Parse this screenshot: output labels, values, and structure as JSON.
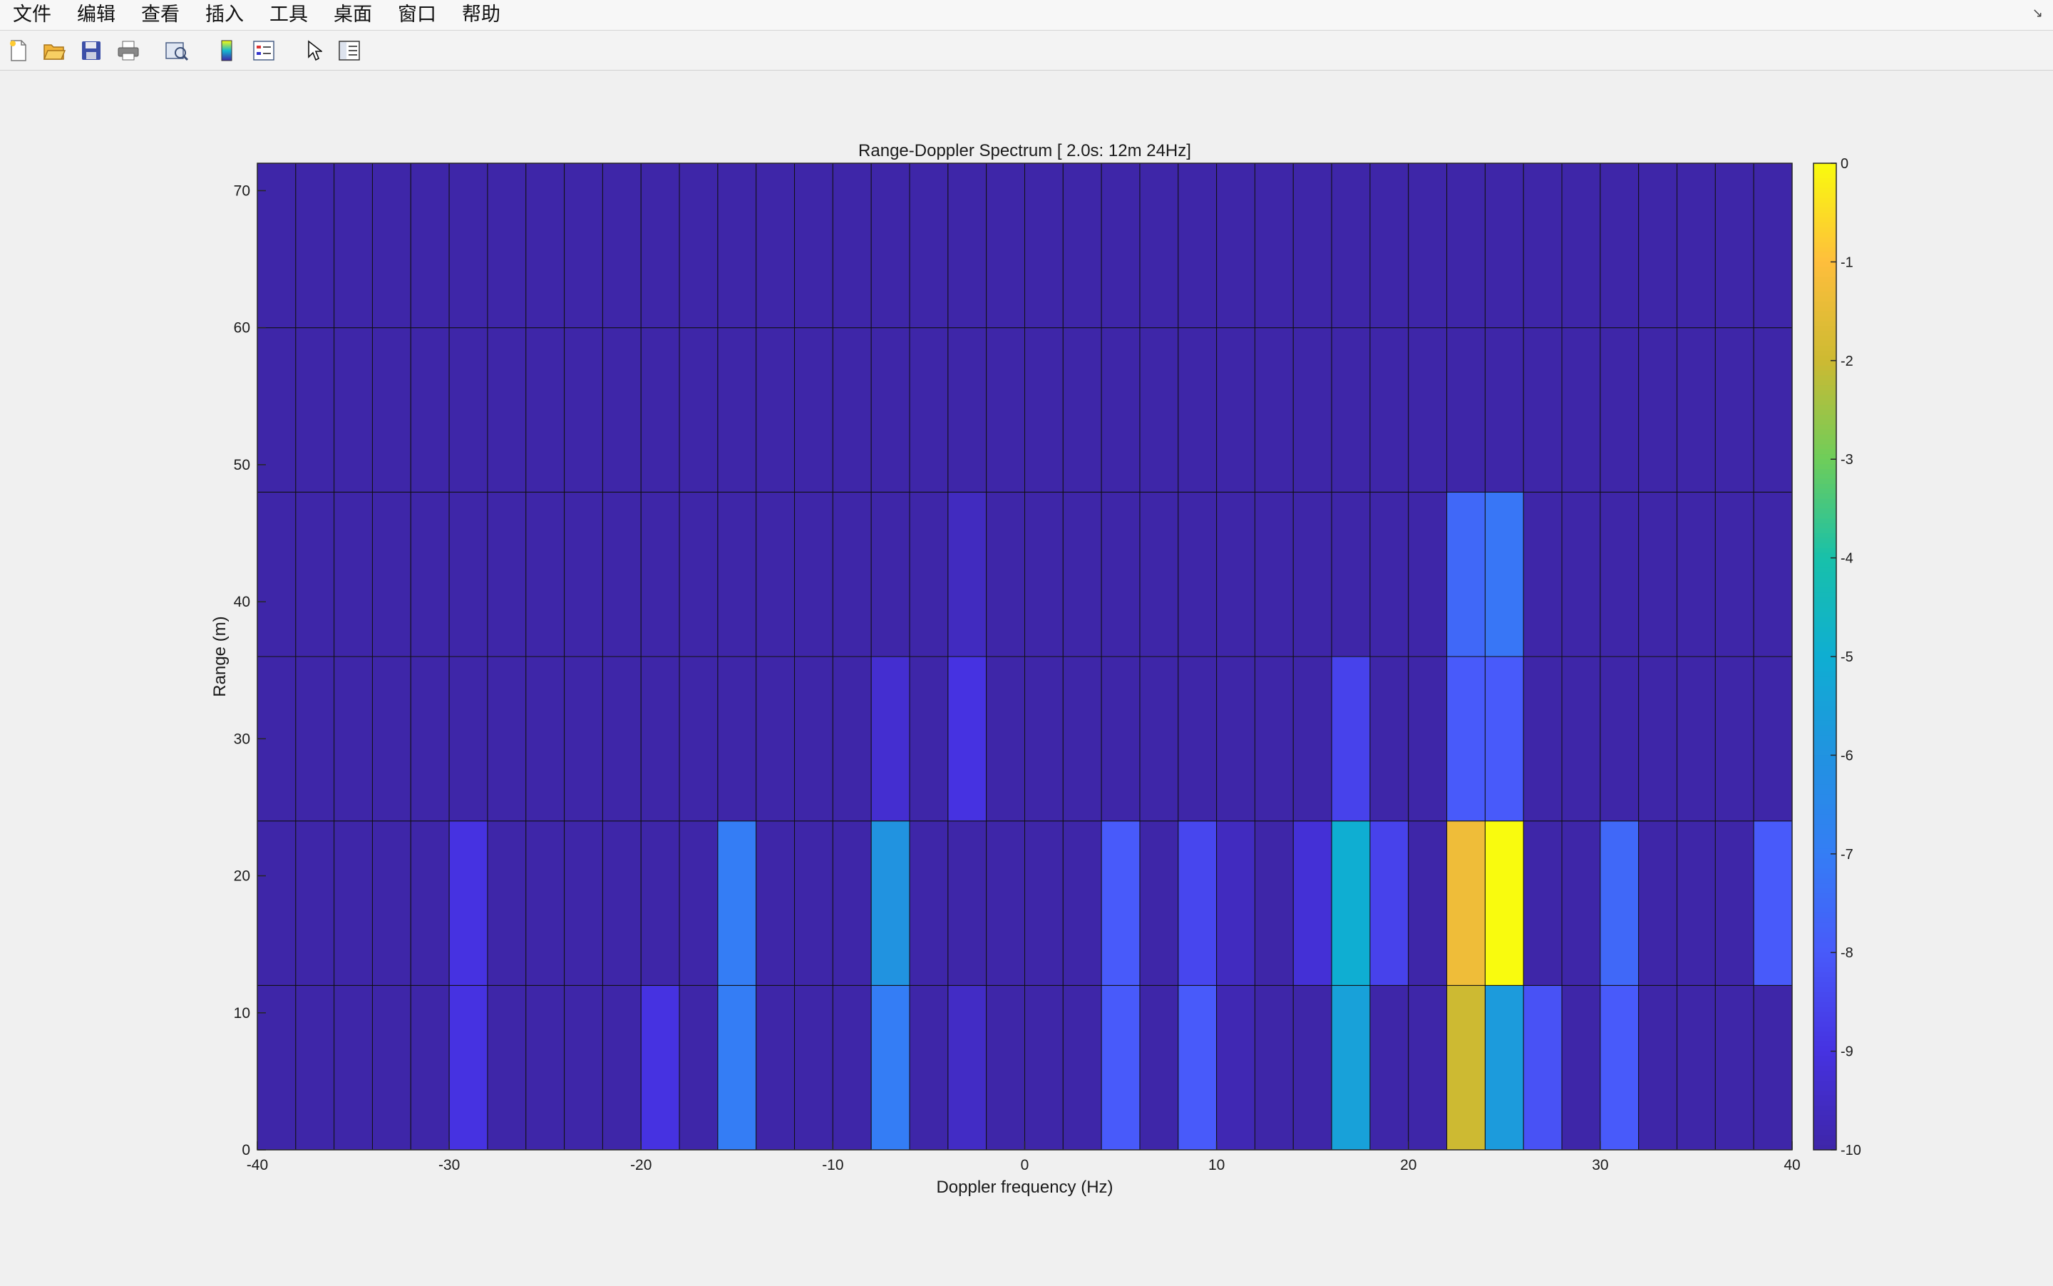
{
  "menubar": {
    "items": [
      "文件",
      "编辑",
      "查看",
      "插入",
      "工具",
      "桌面",
      "窗口",
      "帮助"
    ]
  },
  "toolbar": {
    "buttons": [
      "new-figure-icon",
      "open-file-icon",
      "save-icon",
      "print-icon",
      "print-preview-icon",
      "insert-colorbar-icon",
      "insert-legend-icon",
      "edit-plot-arrow-icon",
      "property-inspector-icon"
    ]
  },
  "chart_data": {
    "type": "heatmap",
    "title": "Range-Doppler Spectrum [ 2.0s:  12m  24Hz]",
    "xlabel": "Doppler frequency (Hz)",
    "ylabel": "Range (m)",
    "xlim": [
      -40,
      40
    ],
    "ylim": [
      0,
      72
    ],
    "xticks": [
      "-40",
      "-30",
      "-20",
      "-10",
      "0",
      "10",
      "20",
      "30",
      "40"
    ],
    "yticks": [
      "0",
      "10",
      "20",
      "30",
      "40",
      "50",
      "60",
      "70"
    ],
    "x_edges_start": -40,
    "x_bin_width": 2,
    "x_bins": 40,
    "y_edges": [
      0,
      12,
      24,
      36,
      48,
      60,
      72
    ],
    "clim": [
      -10,
      0
    ],
    "colorbar_ticks": [
      "0",
      "-1",
      "-2",
      "-3",
      "-4",
      "-5",
      "-6",
      "-7",
      "-8",
      "-9",
      "-10"
    ],
    "colormap": "parula",
    "grid": true,
    "values": [
      [
        -10,
        -10,
        -10,
        -10,
        -10,
        -9,
        -10,
        -10,
        -10,
        -10,
        -9,
        -10,
        -7,
        -10,
        -10,
        -10,
        -7,
        -10,
        -9.5,
        -10,
        -10,
        -10,
        -8,
        -10,
        -8,
        -9.8,
        -10,
        -10,
        -5.5,
        -10,
        -10,
        -2,
        -5.7,
        -8.2,
        -10,
        -8,
        -10,
        -10,
        -10,
        -10
      ],
      [
        -10,
        -10,
        -10,
        -10,
        -10,
        -9,
        -10,
        -10,
        -10,
        -10,
        -10,
        -10,
        -7,
        -10,
        -10,
        -10,
        -6,
        -10,
        -10,
        -10,
        -10,
        -10,
        -8,
        -10,
        -8.5,
        -9.6,
        -10,
        -9.2,
        -5,
        -8.6,
        -10,
        -1.3,
        0,
        -10,
        -10,
        -7.6,
        -10,
        -10,
        -10,
        -8
      ],
      [
        -10,
        -10,
        -10,
        -10,
        -10,
        -10,
        -10,
        -10,
        -10,
        -10,
        -10,
        -10,
        -10,
        -10,
        -10,
        -10,
        -9.3,
        -10,
        -9,
        -10,
        -10,
        -10,
        -10,
        -10,
        -10,
        -10,
        -10,
        -10,
        -8.6,
        -10,
        -10,
        -8,
        -8,
        -10,
        -10,
        -10,
        -10,
        -10,
        -10,
        -10
      ],
      [
        -10,
        -10,
        -10,
        -10,
        -10,
        -10,
        -10,
        -10,
        -10,
        -10,
        -10,
        -10,
        -10,
        -10,
        -10,
        -10,
        -10,
        -10,
        -9.6,
        -10,
        -10,
        -10,
        -10,
        -10,
        -10,
        -10,
        -10,
        -10,
        -10,
        -10,
        -10,
        -7.6,
        -7.2,
        -10,
        -10,
        -10,
        -10,
        -10,
        -10,
        -10
      ],
      [
        -10,
        -10,
        -10,
        -10,
        -10,
        -10,
        -10,
        -10,
        -10,
        -10,
        -10,
        -10,
        -10,
        -10,
        -10,
        -10,
        -10,
        -10,
        -10,
        -10,
        -10,
        -10,
        -10,
        -10,
        -10,
        -10,
        -10,
        -10,
        -10,
        -10,
        -10,
        -10,
        -10,
        -10,
        -10,
        -10,
        -10,
        -10,
        -10,
        -10
      ],
      [
        -10,
        -10,
        -10,
        -10,
        -10,
        -10,
        -10,
        -10,
        -10,
        -10,
        -10,
        -10,
        -10,
        -10,
        -10,
        -10,
        -10,
        -10,
        -10,
        -10,
        -10,
        -10,
        -10,
        -10,
        -10,
        -10,
        -10,
        -10,
        -10,
        -10,
        -10,
        -10,
        -10,
        -10,
        -10,
        -10,
        -10,
        -10,
        -10,
        -10
      ]
    ]
  }
}
